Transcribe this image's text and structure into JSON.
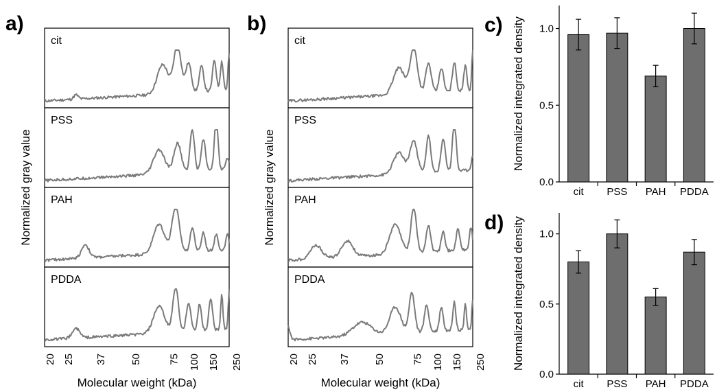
{
  "chart_data": [
    {
      "panel": "a)",
      "type": "line",
      "ylabel": "Normalized gray value",
      "xlabel": "Molecular weight (kDa)",
      "xticks": [
        "20",
        "25",
        "37",
        "50",
        "75",
        "100",
        "150",
        "250"
      ],
      "series": [
        {
          "name": "cit",
          "peaks": [
            [
              0.17,
              0.08,
              0.012
            ],
            [
              0.64,
              0.55,
              0.03
            ],
            [
              0.72,
              0.9,
              0.02
            ],
            [
              0.78,
              0.55,
              0.015
            ],
            [
              0.85,
              0.48,
              0.012
            ],
            [
              0.92,
              0.58,
              0.01
            ],
            [
              0.96,
              0.55,
              0.008
            ],
            [
              1.0,
              0.7,
              0.006
            ]
          ]
        },
        {
          "name": "PSS",
          "peaks": [
            [
              0.62,
              0.45,
              0.03
            ],
            [
              0.72,
              0.55,
              0.02
            ],
            [
              0.8,
              0.8,
              0.012
            ],
            [
              0.86,
              0.6,
              0.012
            ],
            [
              0.93,
              0.98,
              0.01
            ],
            [
              0.99,
              0.2,
              0.01
            ]
          ]
        },
        {
          "name": "PAH",
          "peaks": [
            [
              0.22,
              0.25,
              0.02
            ],
            [
              0.62,
              0.55,
              0.03
            ],
            [
              0.71,
              0.85,
              0.02
            ],
            [
              0.8,
              0.45,
              0.012
            ],
            [
              0.86,
              0.35,
              0.01
            ],
            [
              0.93,
              0.3,
              0.01
            ],
            [
              0.99,
              0.28,
              0.008
            ]
          ]
        },
        {
          "name": "PDDA",
          "peaks": [
            [
              0.17,
              0.18,
              0.02
            ],
            [
              0.62,
              0.5,
              0.03
            ],
            [
              0.71,
              0.85,
              0.015
            ],
            [
              0.78,
              0.55,
              0.012
            ],
            [
              0.84,
              0.5,
              0.01
            ],
            [
              0.9,
              0.6,
              0.01
            ],
            [
              0.96,
              0.65,
              0.006
            ],
            [
              1.0,
              0.75,
              0.005
            ]
          ]
        }
      ]
    },
    {
      "panel": "b)",
      "type": "line",
      "ylabel": "Normalized gray value",
      "xlabel": "Molecular weight (kDa)",
      "xticks": [
        "20",
        "25",
        "37",
        "50",
        "75",
        "100",
        "150",
        "250"
      ],
      "series": [
        {
          "name": "cit",
          "peaks": [
            [
              0.6,
              0.5,
              0.03
            ],
            [
              0.68,
              0.85,
              0.02
            ],
            [
              0.76,
              0.55,
              0.015
            ],
            [
              0.83,
              0.45,
              0.012
            ],
            [
              0.9,
              0.55,
              0.01
            ],
            [
              0.96,
              0.5,
              0.008
            ],
            [
              1.0,
              0.8,
              0.005
            ]
          ]
        },
        {
          "name": "PSS",
          "peaks": [
            [
              0.6,
              0.4,
              0.03
            ],
            [
              0.68,
              0.6,
              0.02
            ],
            [
              0.76,
              0.7,
              0.012
            ],
            [
              0.84,
              0.6,
              0.012
            ],
            [
              0.9,
              0.95,
              0.01
            ],
            [
              1.0,
              0.25,
              0.008
            ]
          ]
        },
        {
          "name": "PAH",
          "peaks": [
            [
              0.15,
              0.25,
              0.03
            ],
            [
              0.32,
              0.3,
              0.03
            ],
            [
              0.58,
              0.55,
              0.03
            ],
            [
              0.68,
              0.85,
              0.015
            ],
            [
              0.76,
              0.5,
              0.012
            ],
            [
              0.84,
              0.4,
              0.01
            ],
            [
              0.92,
              0.4,
              0.01
            ],
            [
              0.99,
              0.42,
              0.008
            ]
          ]
        },
        {
          "name": "PDDA",
          "peaks": [
            [
              0.0,
              0.25,
              0.01
            ],
            [
              0.4,
              0.25,
              0.05
            ],
            [
              0.58,
              0.5,
              0.03
            ],
            [
              0.67,
              0.75,
              0.015
            ],
            [
              0.75,
              0.5,
              0.012
            ],
            [
              0.83,
              0.45,
              0.01
            ],
            [
              0.9,
              0.55,
              0.008
            ],
            [
              0.96,
              0.5,
              0.006
            ],
            [
              1.0,
              0.55,
              0.005
            ]
          ]
        }
      ]
    },
    {
      "panel": "c)",
      "type": "bar",
      "ylabel": "Normalized integrated density",
      "categories": [
        "cit",
        "PSS",
        "PAH",
        "PDDA"
      ],
      "values": [
        0.96,
        0.97,
        0.69,
        1.0
      ],
      "errors": [
        0.1,
        0.1,
        0.07,
        0.1
      ],
      "ylim": [
        0,
        1.15
      ],
      "yticks": [
        "0.0",
        "0.5",
        "1.0"
      ]
    },
    {
      "panel": "d)",
      "type": "bar",
      "ylabel": "Normalized integrated density",
      "categories": [
        "cit",
        "PSS",
        "PAH",
        "PDDA"
      ],
      "values": [
        0.8,
        1.0,
        0.55,
        0.87
      ],
      "errors": [
        0.08,
        0.1,
        0.06,
        0.09
      ],
      "ylim": [
        0,
        1.15
      ],
      "yticks": [
        "0.0",
        "0.5",
        "1.0"
      ]
    }
  ]
}
